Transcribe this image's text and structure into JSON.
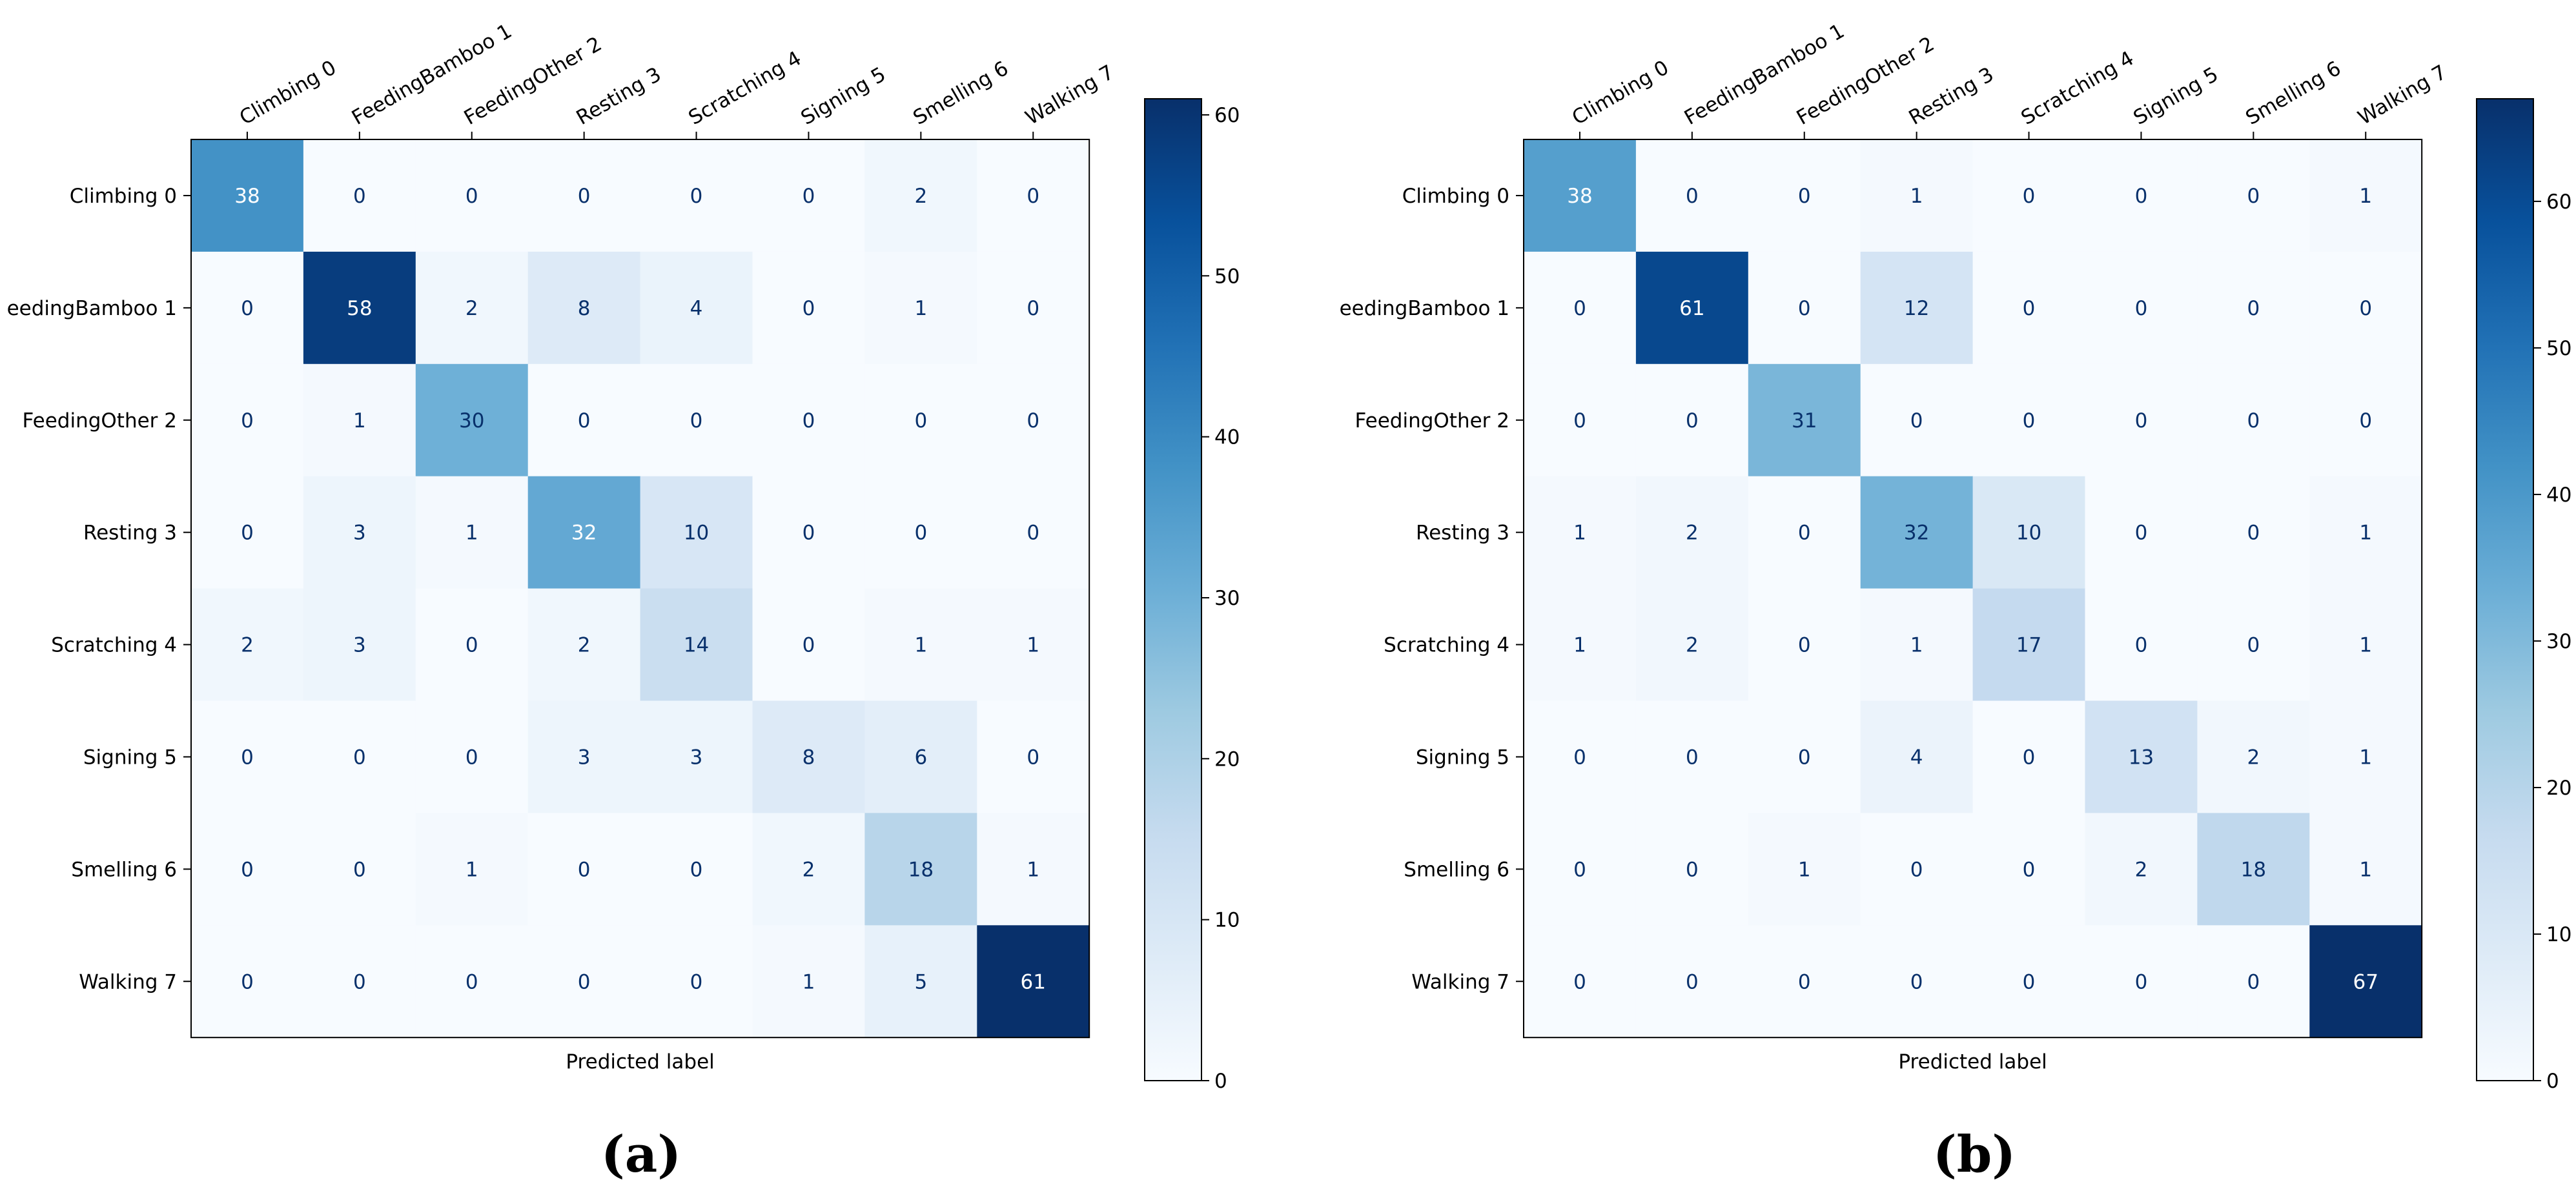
{
  "chart_data": [
    {
      "type": "heatmap",
      "title": "",
      "panel_label": "(a)",
      "xlabel": "Predicted label",
      "ylabel": "",
      "x_tick_labels": [
        "Climbing 0",
        "FeedingBamboo 1",
        "FeedingOther 2",
        "Resting 3",
        "Scratching 4",
        "Signing 5",
        "Smelling 6",
        "Walking 7"
      ],
      "y_tick_labels": [
        "Climbing 0",
        "eedingBamboo 1",
        "FeedingOther 2",
        "Resting 3",
        "Scratching 4",
        "Signing 5",
        "Smelling 6",
        "Walking 7"
      ],
      "matrix": [
        [
          38,
          0,
          0,
          0,
          0,
          0,
          2,
          0
        ],
        [
          0,
          58,
          2,
          8,
          4,
          0,
          1,
          0
        ],
        [
          0,
          1,
          30,
          0,
          0,
          0,
          0,
          0
        ],
        [
          0,
          3,
          1,
          32,
          10,
          0,
          0,
          0
        ],
        [
          2,
          3,
          0,
          2,
          14,
          0,
          1,
          1
        ],
        [
          0,
          0,
          0,
          3,
          3,
          8,
          6,
          0
        ],
        [
          0,
          0,
          1,
          0,
          0,
          2,
          18,
          1
        ],
        [
          0,
          0,
          0,
          0,
          0,
          1,
          5,
          61
        ]
      ],
      "colormap": "Blues",
      "colorbar": {
        "min": 0,
        "max": 61,
        "ticks": [
          0,
          10,
          20,
          30,
          40,
          50,
          60
        ]
      }
    },
    {
      "type": "heatmap",
      "title": "",
      "panel_label": "(b)",
      "xlabel": "Predicted label",
      "ylabel": "",
      "x_tick_labels": [
        "Climbing 0",
        "FeedingBamboo 1",
        "FeedingOther 2",
        "Resting 3",
        "Scratching 4",
        "Signing 5",
        "Smelling 6",
        "Walking 7"
      ],
      "y_tick_labels": [
        "Climbing 0",
        "eedingBamboo 1",
        "FeedingOther 2",
        "Resting 3",
        "Scratching 4",
        "Signing 5",
        "Smelling 6",
        "Walking 7"
      ],
      "matrix": [
        [
          38,
          0,
          0,
          1,
          0,
          0,
          0,
          1
        ],
        [
          0,
          61,
          0,
          12,
          0,
          0,
          0,
          0
        ],
        [
          0,
          0,
          31,
          0,
          0,
          0,
          0,
          0
        ],
        [
          1,
          2,
          0,
          32,
          10,
          0,
          0,
          1
        ],
        [
          1,
          2,
          0,
          1,
          17,
          0,
          0,
          1
        ],
        [
          0,
          0,
          0,
          4,
          0,
          13,
          2,
          1
        ],
        [
          0,
          0,
          1,
          0,
          0,
          2,
          18,
          1
        ],
        [
          0,
          0,
          0,
          0,
          0,
          0,
          0,
          67
        ]
      ],
      "colormap": "Blues",
      "colorbar": {
        "min": 0,
        "max": 67,
        "ticks": [
          0,
          10,
          20,
          30,
          40,
          50,
          60
        ]
      }
    }
  ]
}
